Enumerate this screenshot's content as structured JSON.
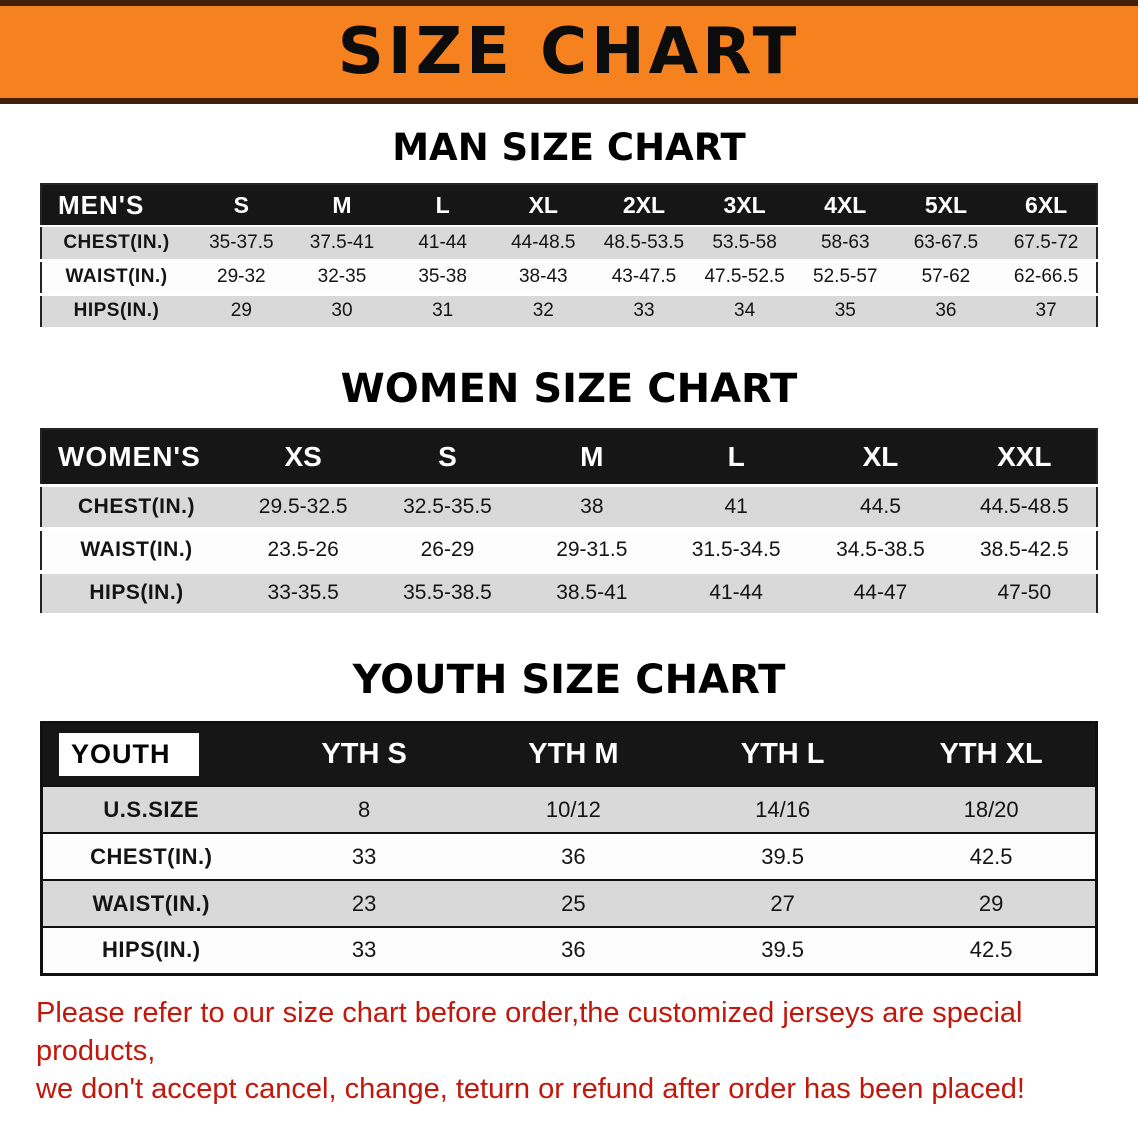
{
  "banner": {
    "title": "SIZE CHART"
  },
  "sections": [
    {
      "heading": "MAN SIZE CHART",
      "table": {
        "header": [
          "MEN'S",
          "S",
          "M",
          "L",
          "XL",
          "2XL",
          "3XL",
          "4XL",
          "5XL",
          "6XL"
        ],
        "rows": [
          {
            "label": "CHEST(IN.)",
            "values": [
              "35-37.5",
              "37.5-41",
              "41-44",
              "44-48.5",
              "48.5-53.5",
              "53.5-58",
              "58-63",
              "63-67.5",
              "67.5-72"
            ]
          },
          {
            "label": "WAIST(IN.)",
            "values": [
              "29-32",
              "32-35",
              "35-38",
              "38-43",
              "43-47.5",
              "47.5-52.5",
              "52.5-57",
              "57-62",
              "62-66.5"
            ]
          },
          {
            "label": "HIPS(IN.)",
            "values": [
              "29",
              "30",
              "31",
              "32",
              "33",
              "34",
              "35",
              "36",
              "37"
            ]
          }
        ]
      }
    },
    {
      "heading": "WOMEN SIZE CHART",
      "table": {
        "header": [
          "WOMEN'S",
          "XS",
          "S",
          "M",
          "L",
          "XL",
          "XXL"
        ],
        "rows": [
          {
            "label": "CHEST(IN.)",
            "values": [
              "29.5-32.5",
              "32.5-35.5",
              "38",
              "41",
              "44.5",
              "44.5-48.5"
            ]
          },
          {
            "label": "WAIST(IN.)",
            "values": [
              "23.5-26",
              "26-29",
              "29-31.5",
              "31.5-34.5",
              "34.5-38.5",
              "38.5-42.5"
            ]
          },
          {
            "label": "HIPS(IN.)",
            "values": [
              "33-35.5",
              "35.5-38.5",
              "38.5-41",
              "41-44",
              "44-47",
              "47-50"
            ]
          }
        ]
      }
    },
    {
      "heading": "YOUTH SIZE CHART",
      "table": {
        "header": [
          "YOUTH",
          "YTH S",
          "YTH M",
          "YTH L",
          "YTH XL"
        ],
        "rows": [
          {
            "label": "U.S.SIZE",
            "values": [
              "8",
              "10/12",
              "14/16",
              "18/20"
            ]
          },
          {
            "label": "CHEST(IN.)",
            "values": [
              "33",
              "36",
              "39.5",
              "42.5"
            ]
          },
          {
            "label": "WAIST(IN.)",
            "values": [
              "23",
              "25",
              "27",
              "29"
            ]
          },
          {
            "label": "HIPS(IN.)",
            "values": [
              "33",
              "36",
              "39.5",
              "42.5"
            ]
          }
        ]
      }
    }
  ],
  "disclaimer": {
    "line1": "Please refer to our size chart before order,the customized jerseys are special products,",
    "line2": "we don't accept cancel, change, teturn or refund after order has been placed!"
  },
  "colors": {
    "banner_orange": "#f5821f",
    "banner_border_brown": "#421f07",
    "table_header_black": "#161616",
    "row_gray": "#d9d9d9",
    "disclaimer_red": "#c3170b"
  }
}
